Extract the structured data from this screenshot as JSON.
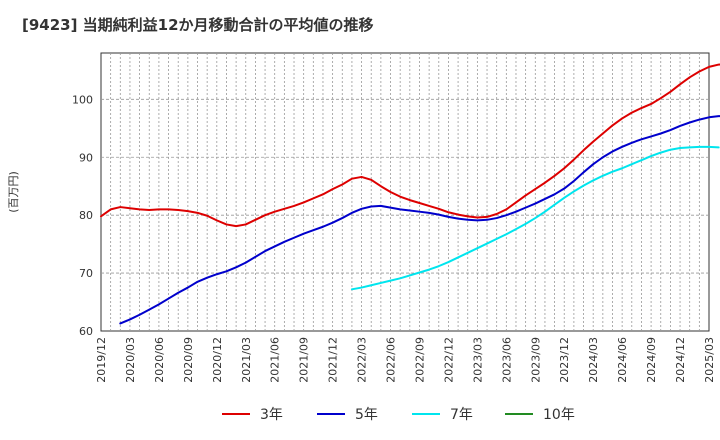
{
  "title": "[9423]  当期純利益12か月移動合計の平均値の推移",
  "chart_data": {
    "type": "line",
    "ylabel": "(百万円)",
    "xlabel": "",
    "ylim": [
      60,
      108
    ],
    "yticks": [
      60,
      70,
      80,
      90,
      100
    ],
    "xticks": [
      "2019/12",
      "2020/03",
      "2020/06",
      "2020/09",
      "2020/12",
      "2021/03",
      "2021/06",
      "2021/09",
      "2021/12",
      "2022/03",
      "2022/06",
      "2022/09",
      "2022/12",
      "2023/03",
      "2023/06",
      "2023/09",
      "2023/12",
      "2024/03",
      "2024/06",
      "2024/09",
      "2024/12",
      "2025/03"
    ],
    "grid": true,
    "legend_position": "bottom",
    "series": [
      {
        "name": "3年",
        "color": "#dd0000",
        "start": "2019/12",
        "values": [
          79.8,
          81.0,
          81.4,
          81.2,
          81.0,
          80.9,
          81.0,
          81.0,
          80.9,
          80.7,
          80.4,
          79.9,
          79.1,
          78.4,
          78.1,
          78.4,
          79.2,
          80.0,
          80.6,
          81.1,
          81.6,
          82.2,
          82.9,
          83.6,
          84.5,
          85.3,
          86.3,
          86.6,
          86.1,
          85.0,
          84.0,
          83.2,
          82.6,
          82.1,
          81.6,
          81.1,
          80.5,
          80.1,
          79.8,
          79.6,
          79.7,
          80.2,
          81.0,
          82.2,
          83.4,
          84.5,
          85.6,
          86.8,
          88.1,
          89.6,
          91.2,
          92.7,
          94.1,
          95.5,
          96.7,
          97.7,
          98.5,
          99.2,
          100.2,
          101.3,
          102.6,
          103.8,
          104.8,
          105.6,
          106.0,
          106.1,
          105.8
        ]
      },
      {
        "name": "5年",
        "color": "#0000cc",
        "start": "2020/02",
        "values": [
          61.3,
          62.0,
          62.8,
          63.7,
          64.6,
          65.6,
          66.6,
          67.5,
          68.5,
          69.2,
          69.8,
          70.3,
          71.0,
          71.8,
          72.8,
          73.8,
          74.6,
          75.4,
          76.1,
          76.8,
          77.4,
          78.0,
          78.7,
          79.5,
          80.4,
          81.1,
          81.5,
          81.6,
          81.3,
          81.0,
          80.8,
          80.6,
          80.4,
          80.1,
          79.7,
          79.4,
          79.2,
          79.1,
          79.2,
          79.5,
          80.0,
          80.6,
          81.3,
          82.0,
          82.8,
          83.6,
          84.6,
          85.9,
          87.4,
          88.8,
          90.0,
          91.0,
          91.8,
          92.5,
          93.1,
          93.6,
          94.1,
          94.7,
          95.4,
          96.0,
          96.5,
          96.9,
          97.1,
          97.1,
          97.0,
          96.7
        ]
      },
      {
        "name": "7年",
        "color": "#00e5ee",
        "start": "2022/02",
        "values": [
          67.2,
          67.5,
          67.9,
          68.3,
          68.7,
          69.1,
          69.6,
          70.1,
          70.6,
          71.2,
          71.9,
          72.7,
          73.5,
          74.3,
          75.1,
          75.9,
          76.7,
          77.6,
          78.5,
          79.5,
          80.6,
          81.8,
          83.0,
          84.1,
          85.1,
          86.0,
          86.8,
          87.5,
          88.1,
          88.8,
          89.5,
          90.2,
          90.8,
          91.3,
          91.6,
          91.7,
          91.8,
          91.8,
          91.7
        ]
      },
      {
        "name": "10年",
        "color": "#228b22",
        "start": "2019/12",
        "values": []
      }
    ]
  }
}
